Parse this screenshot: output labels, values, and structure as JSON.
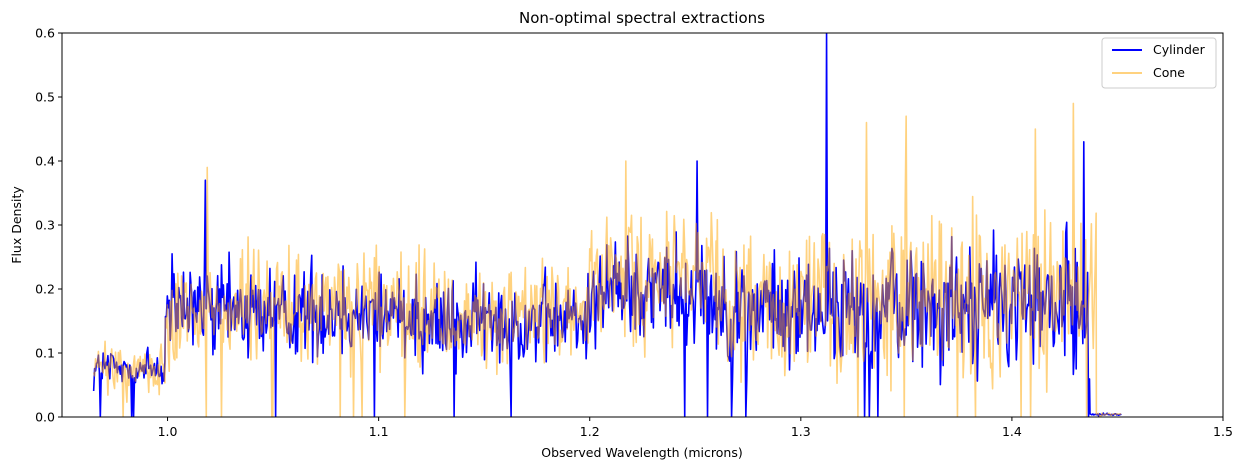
{
  "chart_data": {
    "type": "line",
    "title": "Non-optimal spectral extractions",
    "xlabel": "Observed Wavelength (microns)",
    "ylabel": "Flux Density",
    "xlim": [
      0.95,
      1.5
    ],
    "ylim": [
      0.0,
      0.6
    ],
    "xticks": [
      "1.0",
      "1.1",
      "1.2",
      "1.3",
      "1.4",
      "1.5"
    ],
    "yticks": [
      "0.0",
      "0.1",
      "0.2",
      "0.3",
      "0.4",
      "0.5",
      "0.6"
    ],
    "legend_position": "upper-right",
    "series": [
      {
        "name": "Cylinder",
        "color": "#0000ff",
        "alpha": 1.0,
        "segments": [
          {
            "x": [
              0.965,
              0.999
            ],
            "baseline": 0.075,
            "noise": 0.035
          },
          {
            "x": [
              0.999,
              1.12
            ],
            "baseline": 0.165,
            "noise": 0.07
          },
          {
            "x": [
              1.12,
              1.2
            ],
            "baseline": 0.15,
            "noise": 0.065
          },
          {
            "x": [
              1.2,
              1.26
            ],
            "baseline": 0.2,
            "noise": 0.075
          },
          {
            "x": [
              1.26,
              1.34
            ],
            "baseline": 0.165,
            "noise": 0.08
          },
          {
            "x": [
              1.34,
              1.437
            ],
            "baseline": 0.175,
            "noise": 0.095
          },
          {
            "x": [
              1.437,
              1.452
            ],
            "baseline": 0.004,
            "noise": 0.002
          }
        ],
        "peaks": [
          [
            1.312,
            0.6
          ],
          [
            1.434,
            0.43
          ],
          [
            1.251,
            0.4
          ],
          [
            1.018,
            0.37
          ]
        ]
      },
      {
        "name": "Cone",
        "color": "#ffa500",
        "alpha": 0.5,
        "segments": [
          {
            "x": [
              0.965,
              0.999
            ],
            "baseline": 0.075,
            "noise": 0.04
          },
          {
            "x": [
              0.999,
              1.12
            ],
            "baseline": 0.17,
            "noise": 0.08
          },
          {
            "x": [
              1.12,
              1.2
            ],
            "baseline": 0.155,
            "noise": 0.075
          },
          {
            "x": [
              1.2,
              1.26
            ],
            "baseline": 0.21,
            "noise": 0.09
          },
          {
            "x": [
              1.26,
              1.34
            ],
            "baseline": 0.175,
            "noise": 0.1
          },
          {
            "x": [
              1.34,
              1.44
            ],
            "baseline": 0.185,
            "noise": 0.12
          },
          {
            "x": [
              1.44,
              1.452
            ],
            "baseline": 0.004,
            "noise": 0.002
          }
        ],
        "peaks": [
          [
            1.429,
            0.49
          ],
          [
            1.331,
            0.46
          ],
          [
            1.35,
            0.47
          ],
          [
            1.411,
            0.45
          ],
          [
            1.217,
            0.4
          ],
          [
            1.019,
            0.39
          ]
        ]
      }
    ]
  }
}
